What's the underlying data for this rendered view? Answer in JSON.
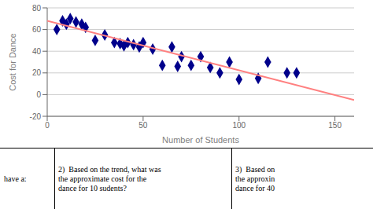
{
  "chart_data": {
    "type": "scatter",
    "xlabel": "Number of Students",
    "ylabel": "Cost for Dance",
    "xlim": [
      0,
      160
    ],
    "ylim": [
      -20,
      80
    ],
    "xticks": [
      0,
      50,
      100,
      150
    ],
    "yticks": [
      -20,
      0,
      20,
      40,
      60,
      80
    ],
    "grid": "y",
    "series": [
      {
        "type": "scatter",
        "color": "#00008B",
        "marker": "diamond",
        "x": [
          5,
          8,
          10,
          12,
          15,
          18,
          20,
          25,
          30,
          35,
          38,
          40,
          42,
          45,
          48,
          50,
          55,
          60,
          65,
          68,
          70,
          75,
          80,
          85,
          90,
          95,
          100,
          110,
          115,
          125,
          130
        ],
        "values": [
          60,
          68,
          65,
          70,
          67,
          65,
          62,
          50,
          55,
          48,
          47,
          45,
          48,
          46,
          44,
          48,
          42,
          27,
          44,
          26,
          35,
          27,
          35,
          25,
          20,
          30,
          14,
          15,
          30,
          20,
          20
        ]
      },
      {
        "type": "line",
        "color": "#FF8080",
        "x": [
          0,
          160
        ],
        "values": [
          68,
          -5
        ]
      }
    ],
    "annotations": [
      "have a:",
      "2)  Based on the trend, what was\nthe approximate cost for the\ndance for 10 sudents?",
      "3)  Based on\nthe approxin\ndance for 40"
    ]
  }
}
